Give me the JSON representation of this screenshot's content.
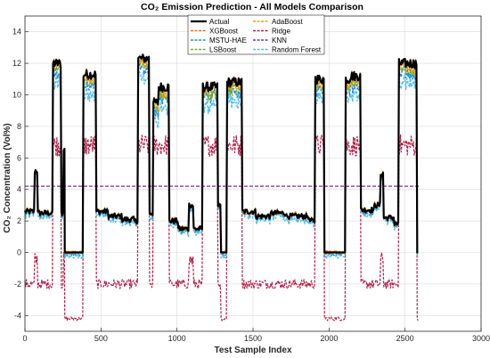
{
  "chart_data": {
    "type": "line",
    "title": "CO₂ Emission Prediction - All Models Comparison",
    "xlabel": "Test Sample Index",
    "ylabel": "CO₂ Concentration (Vol%)",
    "xlim": [
      0,
      3000
    ],
    "ylim": [
      -5,
      15
    ],
    "xticks": [
      "0",
      "500",
      "1000",
      "1500",
      "2000",
      "2500",
      "3000"
    ],
    "yticks": [
      "-4",
      "-2",
      "0",
      "2",
      "4",
      "6",
      "8",
      "10",
      "12",
      "14"
    ],
    "grid": true,
    "legend_position": "top-center",
    "segments": [
      {
        "x0": 0,
        "x1": 65,
        "actual": 2.6,
        "kind": "low"
      },
      {
        "x0": 65,
        "x1": 85,
        "actual": 5.2,
        "kind": "spike"
      },
      {
        "x0": 85,
        "x1": 160,
        "actual": 2.5,
        "kind": "low"
      },
      {
        "x0": 160,
        "x1": 185,
        "actual": 2.5,
        "kind": "ramp"
      },
      {
        "x0": 185,
        "x1": 240,
        "actual": 12.0,
        "kind": "high"
      },
      {
        "x0": 240,
        "x1": 255,
        "actual": 2.5,
        "kind": "low"
      },
      {
        "x0": 255,
        "x1": 262,
        "actual": 6.5,
        "kind": "spike"
      },
      {
        "x0": 262,
        "x1": 290,
        "actual": 0.0,
        "kind": "zero"
      },
      {
        "x0": 290,
        "x1": 385,
        "actual": 0.0,
        "kind": "zero"
      },
      {
        "x0": 385,
        "x1": 470,
        "actual": 11.3,
        "kind": "high"
      },
      {
        "x0": 470,
        "x1": 550,
        "actual": 2.6,
        "kind": "low"
      },
      {
        "x0": 550,
        "x1": 640,
        "actual": 2.3,
        "kind": "low"
      },
      {
        "x0": 640,
        "x1": 720,
        "actual": 2.1,
        "kind": "low"
      },
      {
        "x0": 720,
        "x1": 745,
        "actual": 2.0,
        "kind": "low"
      },
      {
        "x0": 745,
        "x1": 820,
        "actual": 12.3,
        "kind": "high"
      },
      {
        "x0": 820,
        "x1": 845,
        "actual": 2.5,
        "kind": "low"
      },
      {
        "x0": 845,
        "x1": 880,
        "actual": 9.5,
        "kind": "high"
      },
      {
        "x0": 880,
        "x1": 950,
        "actual": 10.5,
        "kind": "high"
      },
      {
        "x0": 950,
        "x1": 1010,
        "actual": 2.0,
        "kind": "low"
      },
      {
        "x0": 1010,
        "x1": 1080,
        "actual": 1.5,
        "kind": "low"
      },
      {
        "x0": 1080,
        "x1": 1110,
        "actual": 3.0,
        "kind": "spike"
      },
      {
        "x0": 1110,
        "x1": 1170,
        "actual": 1.5,
        "kind": "low"
      },
      {
        "x0": 1170,
        "x1": 1270,
        "actual": 10.5,
        "kind": "high"
      },
      {
        "x0": 1270,
        "x1": 1290,
        "actual": 3.0,
        "kind": "low"
      },
      {
        "x0": 1290,
        "x1": 1330,
        "actual": 0.0,
        "kind": "zero"
      },
      {
        "x0": 1330,
        "x1": 1430,
        "actual": 10.8,
        "kind": "high"
      },
      {
        "x0": 1430,
        "x1": 1520,
        "actual": 2.6,
        "kind": "low"
      },
      {
        "x0": 1520,
        "x1": 1620,
        "actual": 2.3,
        "kind": "low"
      },
      {
        "x0": 1620,
        "x1": 1720,
        "actual": 2.5,
        "kind": "low"
      },
      {
        "x0": 1720,
        "x1": 1800,
        "actual": 2.3,
        "kind": "low"
      },
      {
        "x0": 1800,
        "x1": 1870,
        "actual": 2.3,
        "kind": "low"
      },
      {
        "x0": 1870,
        "x1": 1910,
        "actual": 2.0,
        "kind": "low"
      },
      {
        "x0": 1910,
        "x1": 1970,
        "actual": 11.0,
        "kind": "high"
      },
      {
        "x0": 1970,
        "x1": 2110,
        "actual": 0.0,
        "kind": "zero"
      },
      {
        "x0": 2110,
        "x1": 2140,
        "actual": 11.0,
        "kind": "high"
      },
      {
        "x0": 2140,
        "x1": 2210,
        "actual": 11.2,
        "kind": "high"
      },
      {
        "x0": 2210,
        "x1": 2300,
        "actual": 2.7,
        "kind": "low"
      },
      {
        "x0": 2300,
        "x1": 2340,
        "actual": 3.0,
        "kind": "low"
      },
      {
        "x0": 2340,
        "x1": 2360,
        "actual": 5.0,
        "kind": "spike"
      },
      {
        "x0": 2360,
        "x1": 2430,
        "actual": 2.2,
        "kind": "low"
      },
      {
        "x0": 2430,
        "x1": 2460,
        "actual": 1.8,
        "kind": "low"
      },
      {
        "x0": 2460,
        "x1": 2580,
        "actual": 12.0,
        "kind": "high"
      },
      {
        "x0": 2580,
        "x1": 2590,
        "actual": 0.0,
        "kind": "zero"
      }
    ],
    "series": [
      {
        "name": "Actual",
        "color": "#000000",
        "style": "solid",
        "width": 2.2
      },
      {
        "name": "AdaBoost",
        "color": "#E6A000",
        "style": "dash",
        "width": 1.4
      },
      {
        "name": "XGBoost",
        "color": "#F26B21",
        "style": "dash",
        "width": 1.2
      },
      {
        "name": "Ridge",
        "color": "#B01C45",
        "style": "dash",
        "width": 1.2
      },
      {
        "name": "MSTU-HAE",
        "color": "#1E8FD0",
        "style": "dash",
        "width": 1.4
      },
      {
        "name": "KNN",
        "color": "#7E2F8E",
        "style": "dash",
        "width": 1.2
      },
      {
        "name": "LSBoost",
        "color": "#77AC30",
        "style": "dash",
        "width": 1.2
      },
      {
        "name": "Random Forest",
        "color": "#4DBEEE",
        "style": "dash",
        "width": 1.4
      }
    ],
    "knn_constant": 4.2,
    "ridge_relation": "low segments about -2, zero segments about -4.2, high segments about 6.5 to 8"
  }
}
